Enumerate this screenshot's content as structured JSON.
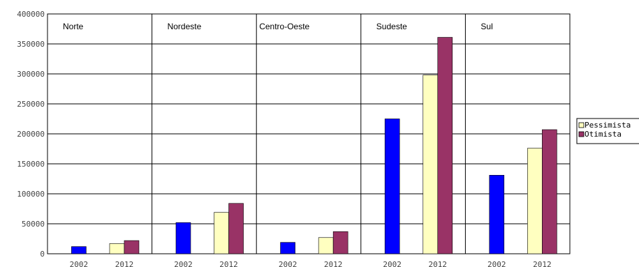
{
  "chart_data": {
    "type": "bar",
    "title": "",
    "xlabel": "",
    "ylabel": "",
    "ylim": [
      0,
      400000
    ],
    "yticks": [
      "0",
      "50000",
      "100000",
      "150000",
      "200000",
      "250000",
      "300000",
      "350000",
      "400000"
    ],
    "grid": true,
    "legend_position": "right",
    "groups": [
      {
        "region": "Norte",
        "categories": [
          "2002",
          "2012"
        ],
        "y2002": 12000,
        "pessimista": 17000,
        "otimista": 22000
      },
      {
        "region": "Nordeste",
        "categories": [
          "2002",
          "2012"
        ],
        "y2002": 52000,
        "pessimista": 69000,
        "otimista": 84000
      },
      {
        "region": "Centro-Oeste",
        "categories": [
          "2002",
          "2012"
        ],
        "y2002": 19000,
        "pessimista": 27000,
        "otimista": 37000
      },
      {
        "region": "Sudeste",
        "categories": [
          "2002",
          "2012"
        ],
        "y2002": 225000,
        "pessimista": 298000,
        "otimista": 361000
      },
      {
        "region": "Sul",
        "categories": [
          "2002",
          "2012"
        ],
        "y2002": 131000,
        "pessimista": 176000,
        "otimista": 207000
      }
    ],
    "legend": [
      {
        "name": "Pessimista",
        "color": "#ffffc0"
      },
      {
        "name": "Otimista",
        "color": "#993366"
      }
    ],
    "colors": {
      "base_2002": "#0000ff",
      "pessimista": "#ffffc0",
      "otimista": "#993366"
    }
  }
}
